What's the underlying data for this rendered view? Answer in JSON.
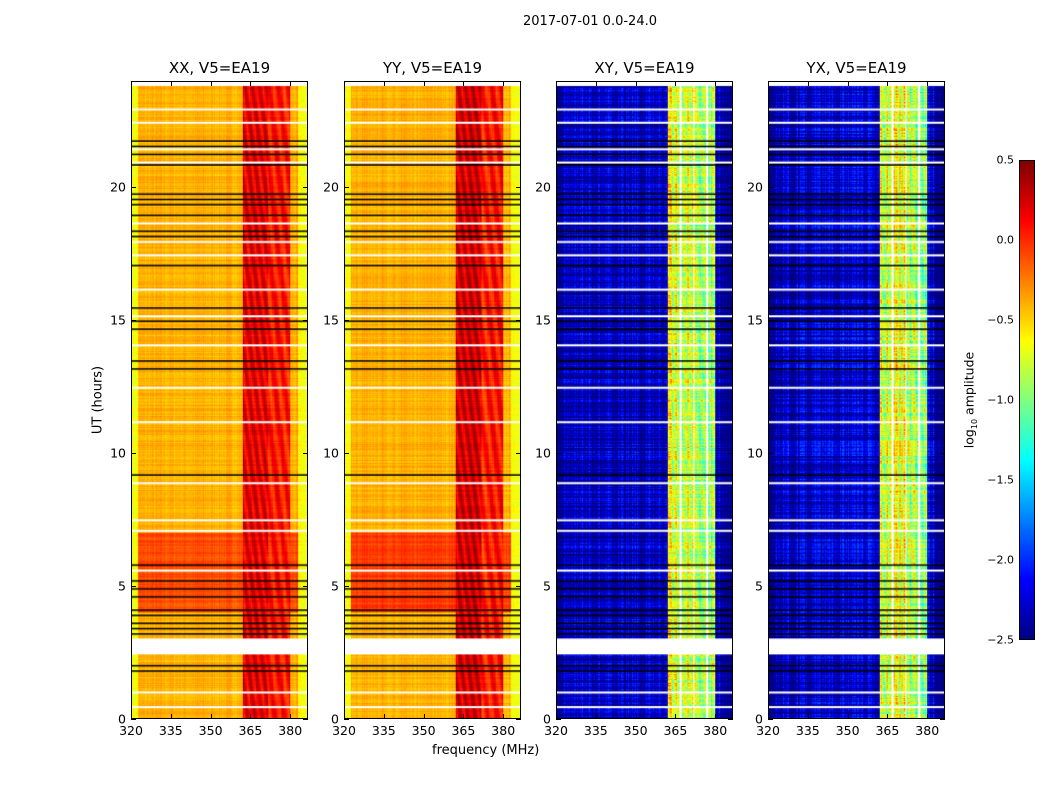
{
  "chart_data": {
    "type": "heatmap",
    "title": "2017-07-01 0.0-24.0",
    "xlabel": "frequency (MHz)",
    "ylabel": "UT (hours)",
    "xlim": [
      320,
      386.7
    ],
    "ylim": [
      0,
      24
    ],
    "xticks": [
      320,
      335,
      350,
      365,
      380
    ],
    "yticks": [
      0,
      5,
      10,
      15,
      20
    ],
    "colorbar": {
      "label": "log10 amplitude",
      "label_base": "log",
      "label_sub": "10",
      "label_rest": " amplitude",
      "range": [
        -2.5,
        0.5
      ],
      "ticks": [
        "0.5",
        "0.0",
        "−0.5",
        "−1.0",
        "−1.5",
        "−2.0",
        "−2.5"
      ],
      "tick_values": [
        0.5,
        0,
        -0.5,
        -1,
        -1.5,
        -2,
        -2.5
      ],
      "colormap": "jet"
    },
    "panels": [
      {
        "title": "XX, V5=EA19",
        "base": -0.4,
        "band_level": 0.2,
        "band2_level": 0.05,
        "evening_level": -0.1,
        "noise": 0.12
      },
      {
        "title": "YY, V5=EA19",
        "base": -0.4,
        "band_level": 0.25,
        "band2_level": 0.05,
        "evening_level": -0.05,
        "noise": 0.12
      },
      {
        "title": "XY, V5=EA19",
        "base": -2.3,
        "band_level": -0.7,
        "band2_level": -0.9,
        "evening_level": -2.3,
        "noise": 0.45
      },
      {
        "title": "YX, V5=EA19",
        "base": -2.3,
        "band_level": -0.7,
        "band2_level": -0.9,
        "evening_level": -2.3,
        "noise": 0.45
      }
    ],
    "band_mhz": [
      362,
      372
    ],
    "band2_mhz": [
      372,
      380
    ],
    "flagged_gap_hours": [
      2.4,
      3.0
    ],
    "white_lines_hours": [
      0.45,
      1.0,
      5.6,
      7.1,
      7.5,
      8.9,
      11.2,
      12.5,
      14.1,
      15.2,
      16.2,
      17.5,
      18.0,
      18.7,
      21.0,
      21.5,
      22.5,
      23.0
    ],
    "black_lines_hours": [
      1.8,
      2.0,
      3.2,
      3.4,
      3.6,
      3.9,
      4.1,
      4.6,
      4.9,
      5.2,
      5.8,
      9.2,
      13.2,
      13.5,
      14.7,
      15.0,
      15.5,
      17.1,
      18.2,
      18.4,
      19.0,
      19.4,
      19.6,
      19.8,
      20.9,
      21.3,
      21.6,
      21.8
    ],
    "flagged_channels_mhz": [
      367,
      372,
      377
    ]
  }
}
